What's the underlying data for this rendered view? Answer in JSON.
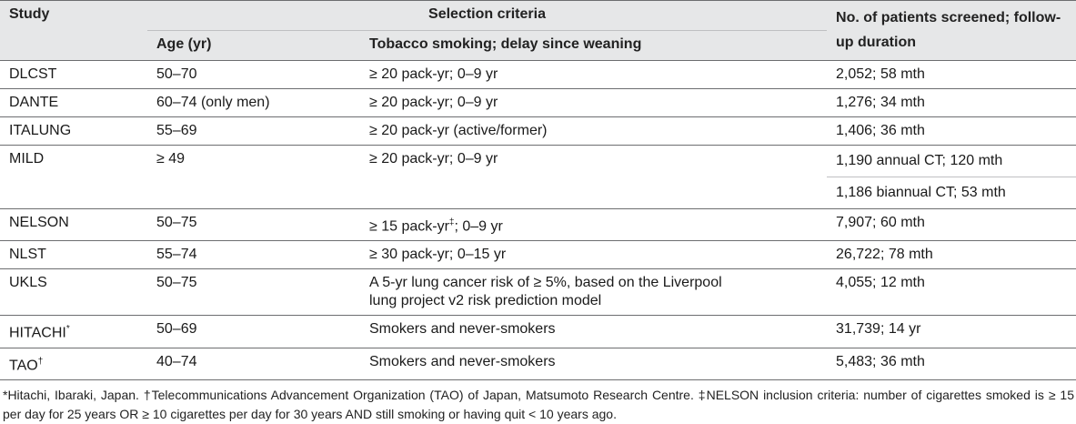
{
  "table": {
    "headers": {
      "study": "Study",
      "selection_criteria": "Selection criteria",
      "age": "Age (yr)",
      "tobacco": "Tobacco smoking; delay since weaning",
      "patients": "No. of patients screened; follow-up duration"
    },
    "rows": [
      {
        "study": "DLCST",
        "age": "50–70",
        "tobacco": "≥ 20 pack-yr; 0–9 yr",
        "patients": "2,052; 58 mth"
      },
      {
        "study": "DANTE",
        "age": "60–74 (only men)",
        "tobacco": "≥ 20 pack-yr; 0–9 yr",
        "patients": "1,276; 34 mth"
      },
      {
        "study": "ITALUNG",
        "age": "55–69",
        "tobacco": "≥ 20 pack-yr (active/former)",
        "patients": "1,406; 36 mth"
      },
      {
        "study": "MILD",
        "age": "≥ 49",
        "tobacco": "≥ 20 pack-yr; 0–9 yr",
        "patients": "1,190 annual CT; 120 mth",
        "patients_2": "1,186 biannual CT; 53 mth"
      },
      {
        "study": "NELSON",
        "age": "50–75",
        "tobacco_pre": "≥ 15 pack-yr",
        "tobacco_sup": "‡",
        "tobacco_post": "; 0–9 yr",
        "patients": "7,907; 60 mth"
      },
      {
        "study": "NLST",
        "age": "55–74",
        "tobacco": "≥ 30 pack-yr; 0–15 yr",
        "patients": "26,722; 78 mth"
      },
      {
        "study": "UKLS",
        "age": "50–75",
        "tobacco": "A 5-yr lung cancer risk of ≥ 5%, based on the Liverpool lung project v2 risk prediction model",
        "patients": "4,055; 12 mth"
      },
      {
        "study_pre": "HITACHI",
        "study_sup": "*",
        "age": "50–69",
        "tobacco": "Smokers and never-smokers",
        "patients": "31,739; 14 yr"
      },
      {
        "study_pre": "TAO",
        "study_sup": "†",
        "age": "40–74",
        "tobacco": "Smokers and never-smokers",
        "patients": "5,483; 36 mth"
      }
    ]
  },
  "footnote": "*Hitachi, Ibaraki, Japan. †Telecommunications Advancement Organization (TAO) of Japan, Matsumoto Research Centre. ‡NELSON inclusion criteria: number of cigarettes smoked is ≥ 15 per day for 25 years OR ≥ 10 cigarettes per day for 30 years AND still smoking or having quit < 10 years ago."
}
